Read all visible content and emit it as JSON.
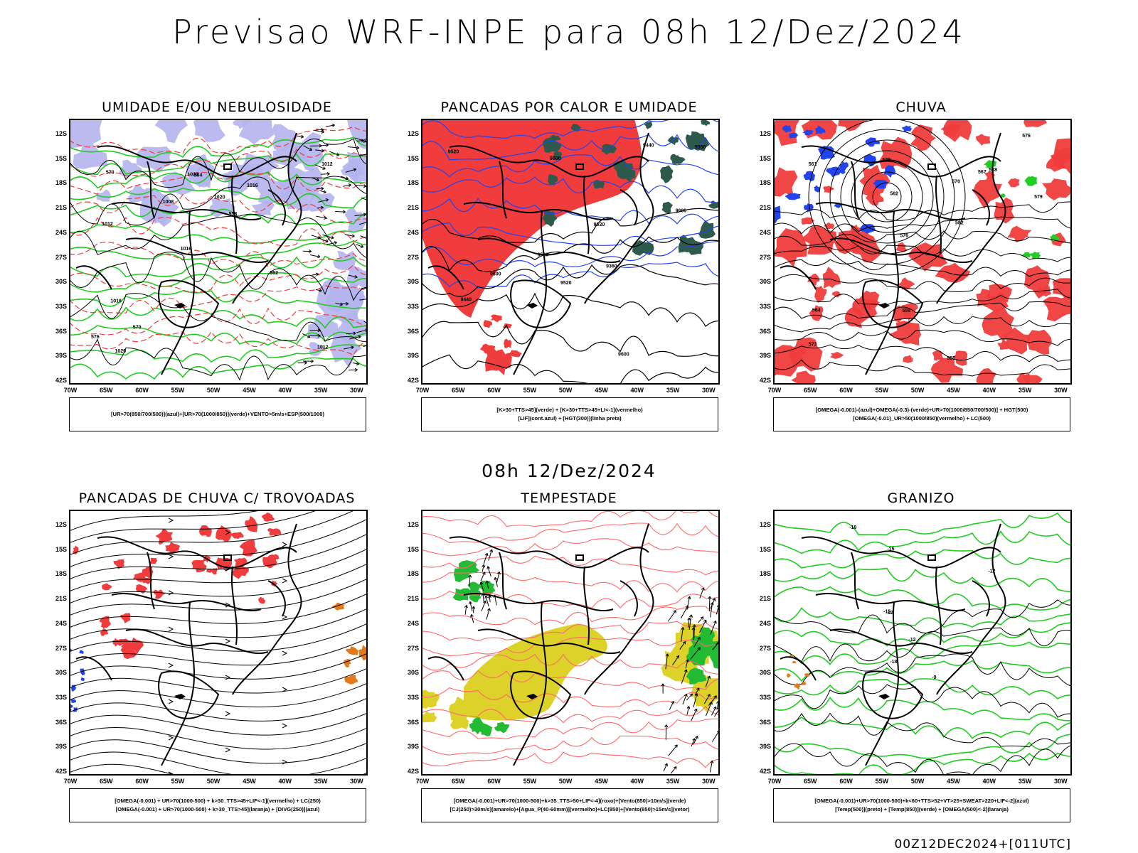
{
  "header": {
    "title": "Previsao WRF-INPE  para 08h 12/Dez/2024"
  },
  "mid_title": "08h 12/Dez/2024",
  "footer": "00Z12DEC2024+[011UTC]",
  "axes": {
    "lat_labels": [
      "12S",
      "15S",
      "18S",
      "21S",
      "24S",
      "27S",
      "30S",
      "33S",
      "36S",
      "39S",
      "42S"
    ],
    "lon_labels": [
      "70W",
      "65W",
      "60W",
      "55W",
      "50W",
      "45W",
      "40W",
      "35W",
      "30W"
    ]
  },
  "colors": {
    "red": "#f03c3c",
    "green": "#22cc22",
    "blue": "#2244ee",
    "lavender": "#b4b4ee",
    "yellow": "#dcd22a",
    "orange": "#e07a1a",
    "darkgreen": "#2e5a4e",
    "lightred": "#ff6a6a"
  },
  "panels": [
    {
      "title": "UMIDADE E/OU NEBULOSIDADE",
      "legend": [
        "[UR>70(850/700/500)](azul)+[UR>70(1000/850)](verde)+VENTO>5m/s+ESP(500/1000)"
      ],
      "contour_labels": [
        "1012",
        "1012",
        "1012",
        "1016",
        "1016",
        "1020",
        "1020",
        "1020",
        "1016",
        "1008",
        "576",
        "570",
        "564",
        "558",
        "552",
        "570"
      ]
    },
    {
      "title": "PANCADAS POR CALOR E UMIDADE",
      "legend": [
        "[K>30+TTS>45](verde) + [K>30+TTS>45+LI<-1](vermelho)",
        "[LIF](cont.azul) + [HGT(300)](linha preta)"
      ],
      "contour_labels": [
        "9600",
        "9600",
        "9520",
        "9520",
        "9520",
        "9440",
        "9360",
        "9440",
        "9360",
        "9600",
        "9600",
        "9520"
      ]
    },
    {
      "title": "CHUVA",
      "legend": [
        "[OMEGA(-0.001)-(azul)+OMEGA(-0.3)-(verde)+UR>70(1000/850/700/500)] + HGT(500)",
        "[OMEGA(-0.01)_UR>50(1000/850)(vermelho) + LC(500)"
      ],
      "contour_labels": [
        "585",
        "582",
        "579",
        "576",
        "573",
        "570",
        "567",
        "564",
        "561",
        "558",
        "588",
        "582",
        "579",
        "576"
      ]
    },
    {
      "title": "PANCADAS DE CHUVA C/ TROVOADAS",
      "legend": [
        "[OMEGA(-0.001) + UR>70(1000-500) + k>30_TTS>45+LIF<-1](vermelho) + LC(250)",
        "[OMEGA(-0.001) + UR>70(1000-500) + k>30_TTS>45](laranja) + [DIVG(250)](azul)"
      ],
      "contour_labels": []
    },
    {
      "title": "TEMPESTADE",
      "legend": [
        "[OMEGA(-0.001)+UR>70(1000-500)+k>35_TTS>50+LIF<-4](roxo)+[Vento(850)>10m/s](verde)",
        "[CJ(250)>30m/s](amarelo)+[Agua_P(40-60mm)](vermelho)+LC(850)+[Vento(850)>15m/s](vetor)"
      ],
      "contour_labels": []
    },
    {
      "title": "GRANIZO",
      "legend": [
        "[OMEGA(-0.001)+UR>70(1000-500)+k<60+TTS>52+VT>25+SWEAT>220+LIF<-2](azul)",
        "[Temp(500)](preto) + [Temp(850)](verde) + [OMEGA(500)<-2](laranja)"
      ],
      "contour_labels": [
        "-12",
        "-12",
        "-15",
        "-18",
        "-12",
        "-9",
        "-15",
        "-18"
      ]
    }
  ]
}
